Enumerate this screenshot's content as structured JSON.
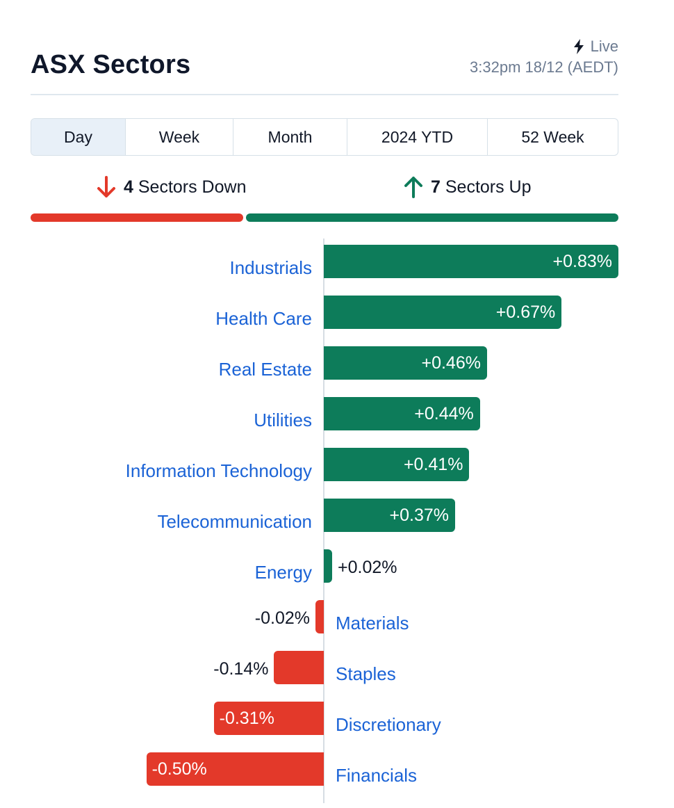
{
  "header": {
    "title": "ASX Sectors",
    "live_label": "Live",
    "timestamp": "3:32pm 18/12 (AEDT)"
  },
  "tabs": [
    {
      "label": "Day",
      "active": true
    },
    {
      "label": "Week",
      "active": false
    },
    {
      "label": "Month",
      "active": false
    },
    {
      "label": "2024 YTD",
      "active": false
    },
    {
      "label": "52 Week",
      "active": false
    }
  ],
  "summary": {
    "down_count": "4",
    "down_label": "Sectors Down",
    "up_count": "7",
    "up_label": "Sectors Up"
  },
  "colors": {
    "up": "#0d7c5a",
    "down": "#e3392a",
    "link": "#1b63d6"
  },
  "icons": {
    "live": "lightning-bolt-icon",
    "down": "arrow-down-icon",
    "up": "arrow-up-icon"
  },
  "chart_data": {
    "type": "bar",
    "orientation": "horizontal",
    "categories": [
      "Industrials",
      "Health Care",
      "Real Estate",
      "Utilities",
      "Information Technology",
      "Telecommunication",
      "Energy",
      "Materials",
      "Staples",
      "Discretionary",
      "Financials"
    ],
    "values": [
      0.83,
      0.67,
      0.46,
      0.44,
      0.41,
      0.37,
      0.02,
      -0.02,
      -0.14,
      -0.31,
      -0.5
    ],
    "value_labels": [
      "+0.83%",
      "+0.67%",
      "+0.46%",
      "+0.44%",
      "+0.41%",
      "+0.37%",
      "+0.02%",
      "-0.02%",
      "-0.14%",
      "-0.31%",
      "-0.50%"
    ],
    "unit": "%"
  }
}
